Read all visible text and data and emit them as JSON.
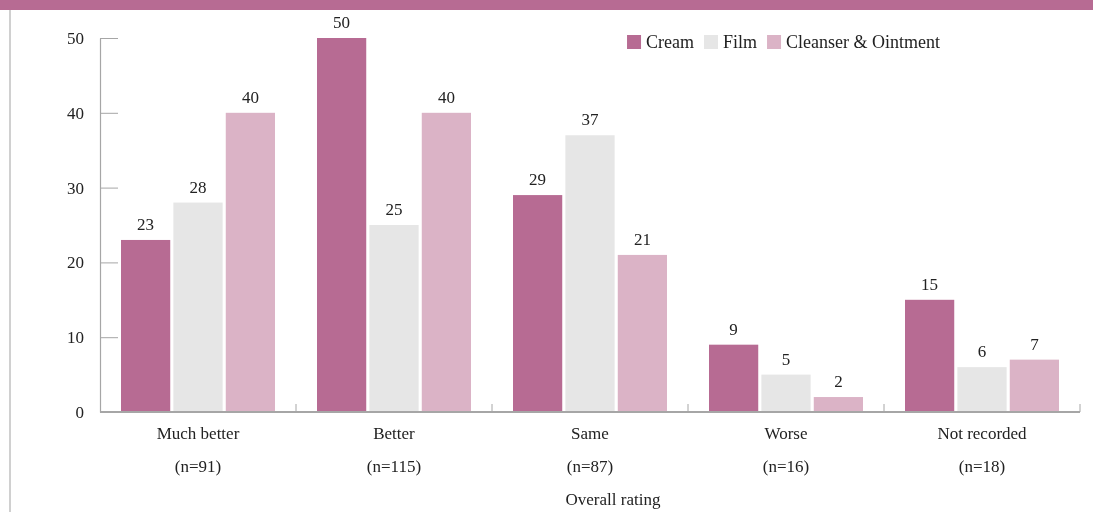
{
  "chart_data": {
    "type": "bar",
    "categories": [
      "Much better\n(n=91)",
      "Better\n(n=115)",
      "Same\n(n=87)",
      "Worse\n(n=16)",
      "Not recorded\n(n=18)"
    ],
    "series": [
      {
        "name": "Cream",
        "color": "#b76b93",
        "values": [
          23,
          50,
          29,
          9,
          15
        ]
      },
      {
        "name": "Film",
        "color": "#e6e6e6",
        "values": [
          28,
          25,
          37,
          5,
          6
        ]
      },
      {
        "name": "Cleanser & Ointment",
        "color": "#dbb3c6",
        "values": [
          40,
          40,
          21,
          2,
          7
        ]
      }
    ],
    "xlabel": "Overall rating",
    "ylim": [
      0,
      50
    ],
    "yticks": [
      0,
      10,
      20,
      30,
      40,
      50
    ],
    "data_labels": true,
    "legend": "top right"
  }
}
